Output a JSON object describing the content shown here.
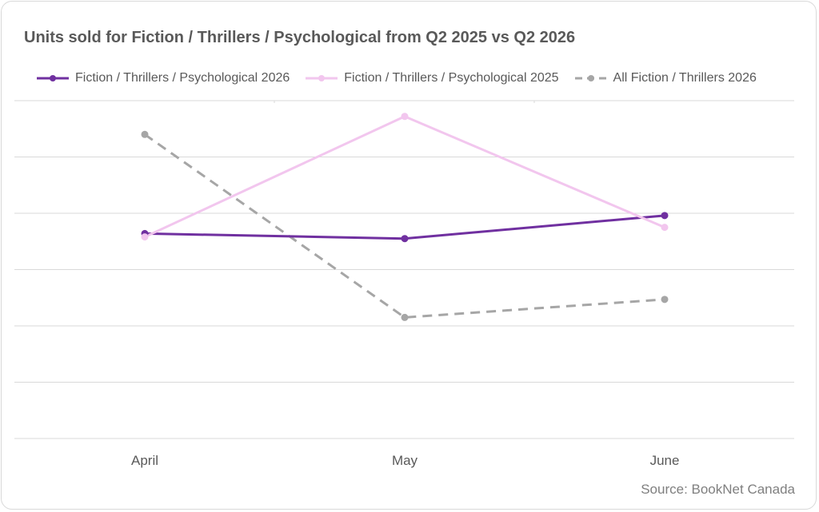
{
  "chart_data": {
    "type": "line",
    "title": "Units sold for Fiction / Thrillers / Psychological from Q2 2025 vs Q2 2026",
    "categories": [
      "April",
      "May",
      "June"
    ],
    "ylim": [
      0,
      6
    ],
    "grid": true,
    "legend_position": "top",
    "series": [
      {
        "name": "Fiction / Thrillers / Psychological 2026",
        "values": [
          3.64,
          3.55,
          3.96
        ],
        "color": "#7030a0",
        "dash": "solid"
      },
      {
        "name": "Fiction / Thrillers / Psychological 2025",
        "values": [
          3.58,
          5.72,
          3.75
        ],
        "color": "#f2c6ee",
        "dash": "solid"
      },
      {
        "name": "All Fiction / Thrillers 2026",
        "values": [
          5.4,
          2.15,
          2.47
        ],
        "color": "#a6a6a6",
        "dash": "dashed"
      }
    ]
  },
  "source": "Source: BookNet Canada"
}
